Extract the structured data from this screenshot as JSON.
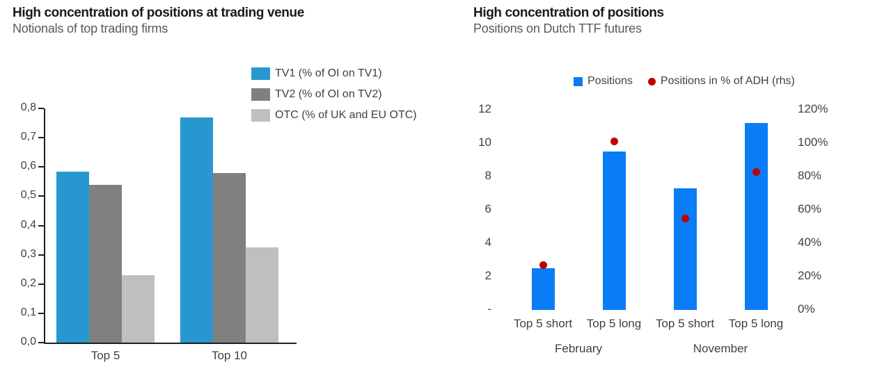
{
  "chart_data": [
    {
      "type": "bar",
      "title": "High concentration of positions at trading venue",
      "subtitle": "Notionals of top trading firms",
      "categories": [
        "Top 5",
        "Top 10"
      ],
      "series": [
        {
          "name": "TV1 (% of OI on TV1)",
          "color": "#2997CF",
          "values": [
            0.585,
            0.77
          ]
        },
        {
          "name": "TV2 (% of OI on TV2)",
          "color": "#808080",
          "values": [
            0.54,
            0.58
          ]
        },
        {
          "name": "OTC (% of UK and EU OTC)",
          "color": "#BFBFBF",
          "values": [
            0.23,
            0.325
          ]
        }
      ],
      "ylabel": "",
      "xlabel": "",
      "ylim": [
        0.0,
        0.8
      ],
      "ytick_step": 0.1,
      "ytick_labels": [
        "0,0",
        "0,1",
        "0,2",
        "0,3",
        "0,4",
        "0,5",
        "0,6",
        "0,7",
        "0,8"
      ],
      "grid": false,
      "legend_position": "top-right",
      "axis_lines": true
    },
    {
      "type": "bar",
      "title": "High concentration of positions",
      "subtitle": "Positions on Dutch TTF futures",
      "categories": [
        "Top 5 short",
        "Top 5 long",
        "Top 5 short",
        "Top 5 long"
      ],
      "group_labels": [
        "February",
        "November"
      ],
      "series": [
        {
          "name": "Positions",
          "type": "bar",
          "axis": "left",
          "color": "#0A7CF5",
          "values": [
            2.5,
            9.5,
            7.3,
            11.2
          ]
        },
        {
          "name": "Positions in % of ADH (rhs)",
          "type": "scatter",
          "axis": "right",
          "color": "#C00000",
          "values": [
            27,
            101,
            55,
            83
          ]
        }
      ],
      "left_axis": {
        "min": 0,
        "max": 12,
        "step": 2,
        "labels_bottom_to_top": [
          "-",
          "2",
          "4",
          "6",
          "8",
          "10",
          "12"
        ]
      },
      "right_axis": {
        "min": 0,
        "max": 120,
        "step": 20,
        "labels_bottom_to_top": [
          "0%",
          "20%",
          "40%",
          "60%",
          "80%",
          "100%",
          "120%"
        ]
      },
      "grid": false,
      "legend_position": "top-center",
      "axis_lines": false
    }
  ]
}
